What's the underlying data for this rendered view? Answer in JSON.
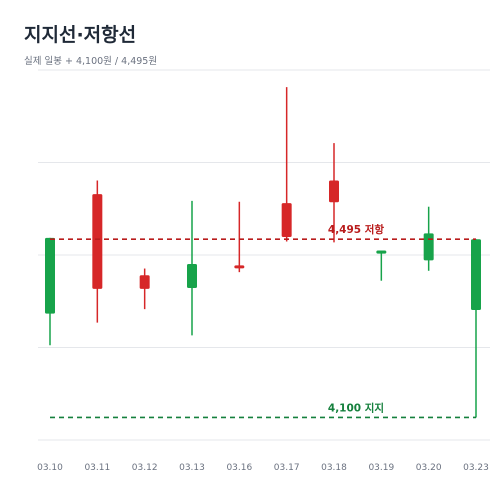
{
  "header": {
    "title": "지지선·저항선",
    "subtitle": "실제 일봉 + 4,100원 / 4,495원"
  },
  "colors": {
    "up": "#d62728",
    "down": "#17a34a",
    "resistance": "#b91c1c",
    "support": "#15803d",
    "grid": "#e5e7eb"
  },
  "chart_data": {
    "type": "candlestick",
    "categories": [
      "03.10",
      "03.11",
      "03.12",
      "03.13",
      "03.16",
      "03.17",
      "03.18",
      "03.19",
      "03.20",
      "03.23"
    ],
    "ohlc": [
      {
        "open": 4498,
        "high": 4498,
        "low": 4260,
        "close": 4330
      },
      {
        "open": 4385,
        "high": 4625,
        "low": 4310,
        "close": 4595
      },
      {
        "open": 4385,
        "high": 4430,
        "low": 4340,
        "close": 4415
      },
      {
        "open": 4440,
        "high": 4580,
        "low": 4282,
        "close": 4387
      },
      {
        "open": 4432,
        "high": 4578,
        "low": 4422,
        "close": 4437
      },
      {
        "open": 4500,
        "high": 4832,
        "low": 4490,
        "close": 4575
      },
      {
        "open": 4577,
        "high": 4708,
        "low": 4488,
        "close": 4625
      },
      {
        "open": 4470,
        "high": 4470,
        "low": 4403,
        "close": 4463
      },
      {
        "open": 4508,
        "high": 4567,
        "low": 4425,
        "close": 4448
      },
      {
        "open": 4495,
        "high": 4495,
        "low": 4100,
        "close": 4338
      }
    ],
    "up_color_meaning": "red = close above open",
    "reference_lines": [
      {
        "value": 4495,
        "label": "4,495 저항",
        "color": "#b91c1c",
        "style": "dashed"
      },
      {
        "value": 4100,
        "label": "4,100 지지",
        "color": "#15803d",
        "style": "dashed"
      }
    ],
    "ylim": [
      4050,
      4870
    ],
    "grid": true
  }
}
